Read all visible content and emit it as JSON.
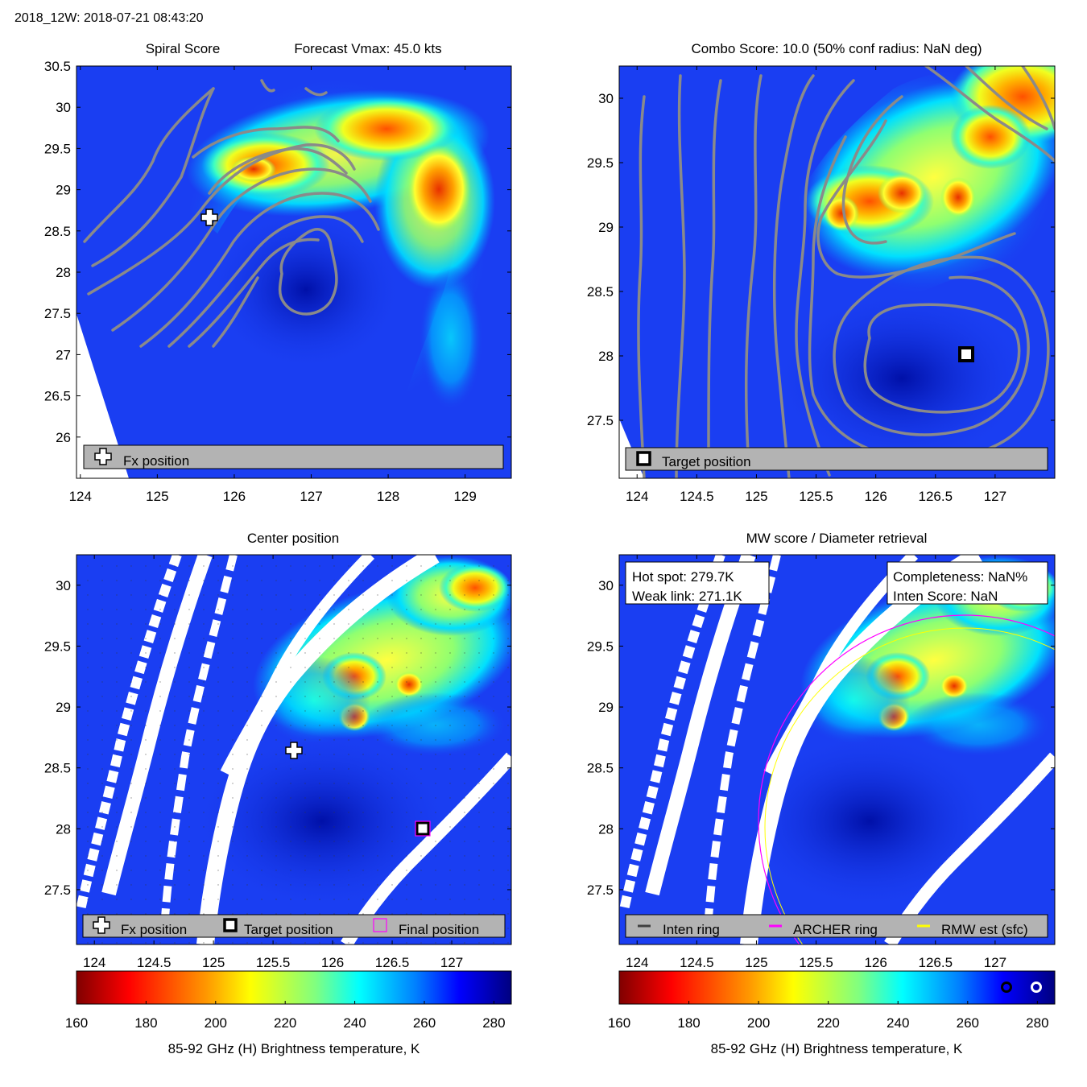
{
  "figure": {
    "header": "2018_12W: 2018-07-21 08:43:20"
  },
  "colors": {
    "background_field": "#1a3ef2",
    "contour": "#8a8a8a",
    "legend_box": "#b3b3b3",
    "inten_ring": "#404040",
    "archer_ring": "#ff00ff",
    "rmw_ring": "#ffff00"
  },
  "panels": {
    "spiral": {
      "title_left": "Spiral Score",
      "title_right": "Forecast Vmax: 45.0 kts",
      "legend": {
        "fx": "Fx position"
      }
    },
    "combo": {
      "title": "Combo Score: 10.0  (50% conf radius: NaN deg)",
      "legend": {
        "target": "Target position"
      }
    },
    "center": {
      "title": "Center position",
      "legend": {
        "fx": "Fx position",
        "target": "Target position",
        "final": "Final position"
      }
    },
    "mw": {
      "title": "MW score / Diameter retrieval",
      "box_left": {
        "line1": "Hot spot: 279.7K",
        "line2": "Weak link: 271.1K"
      },
      "box_right": {
        "line1": "Completeness: NaN%",
        "line2": "Inten Score: NaN"
      },
      "legend": {
        "inten": "Inten ring",
        "archer": "ARCHER ring",
        "rmw": "RMW est (sfc)"
      }
    }
  },
  "chart_data": [
    {
      "type": "heatmap",
      "panel": "spiral",
      "title": "Spiral Score",
      "xlim": [
        123.95,
        129.6
      ],
      "ylim": [
        25.5,
        30.5
      ],
      "xticks": [
        "124",
        "125",
        "126",
        "127",
        "128",
        "129"
      ],
      "xtick_values": [
        124,
        125,
        126,
        127,
        128,
        129
      ],
      "yticks": [
        "26",
        "26.5",
        "27",
        "27.5",
        "28",
        "28.5",
        "29",
        "29.5",
        "30",
        "30.5"
      ],
      "ytick_values": [
        26,
        26.5,
        27,
        27.5,
        28,
        28.5,
        29,
        29.5,
        30,
        30.5
      ],
      "markers": [
        {
          "kind": "fx",
          "lon": 125.7,
          "lat": 28.65
        }
      ]
    },
    {
      "type": "heatmap",
      "panel": "combo",
      "title": "Combo Score: 10.0  (50% conf radius: NaN deg)",
      "xlim": [
        123.85,
        127.5
      ],
      "ylim": [
        27.05,
        30.25
      ],
      "xticks": [
        "124",
        "124.5",
        "125",
        "125.5",
        "126",
        "126.5",
        "127"
      ],
      "xtick_values": [
        124,
        124.5,
        125,
        125.5,
        126,
        126.5,
        127
      ],
      "yticks": [
        "27.5",
        "28",
        "28.5",
        "29",
        "29.5",
        "30"
      ],
      "ytick_values": [
        27.5,
        28,
        28.5,
        29,
        29.5,
        30
      ],
      "markers": [
        {
          "kind": "target",
          "lon": 126.75,
          "lat": 28.02
        }
      ]
    },
    {
      "type": "heatmap",
      "panel": "center",
      "title": "Center position",
      "xlim": [
        123.85,
        127.5
      ],
      "ylim": [
        27.05,
        30.25
      ],
      "xticks": [
        "124",
        "124.5",
        "125",
        "125.5",
        "126",
        "126.5",
        "127"
      ],
      "xtick_values": [
        124,
        124.5,
        125,
        125.5,
        126,
        126.5,
        127
      ],
      "yticks": [
        "27.5",
        "28",
        "28.5",
        "29",
        "29.5",
        "30"
      ],
      "ytick_values": [
        27.5,
        28,
        28.5,
        29,
        29.5,
        30
      ],
      "markers": [
        {
          "kind": "fx",
          "lon": 125.68,
          "lat": 28.65
        },
        {
          "kind": "target",
          "lon": 126.75,
          "lat": 28.02
        },
        {
          "kind": "final",
          "lon": 126.75,
          "lat": 28.02
        }
      ]
    },
    {
      "type": "heatmap",
      "panel": "mw",
      "title": "MW score / Diameter retrieval",
      "xlim": [
        123.85,
        127.5
      ],
      "ylim": [
        27.05,
        30.25
      ],
      "xticks": [
        "124",
        "124.5",
        "125",
        "125.5",
        "126",
        "126.5",
        "127"
      ],
      "xtick_values": [
        124,
        124.5,
        125,
        125.5,
        126,
        126.5,
        127
      ],
      "yticks": [
        "27.5",
        "28",
        "28.5",
        "29",
        "29.5",
        "30"
      ],
      "ytick_values": [
        27.5,
        28,
        28.5,
        29,
        29.5,
        30
      ],
      "rings": [
        {
          "kind": "archer",
          "center_lon": 126.72,
          "center_lat": 28.0,
          "radius_deg": 1.5
        },
        {
          "kind": "rmw",
          "center_lon": 126.72,
          "center_lat": 28.0,
          "radius_deg": 1.46
        }
      ]
    }
  ],
  "colorbars": [
    {
      "label": "85-92 GHz (H) Brightness temperature, K",
      "range": [
        160,
        285
      ],
      "ticks": [
        "160",
        "180",
        "200",
        "220",
        "240",
        "260",
        "280"
      ],
      "tick_values": [
        160,
        180,
        200,
        220,
        240,
        260,
        280
      ],
      "colormap": "jet_reversed"
    },
    {
      "label": "85-92 GHz (H) Brightness temperature, K",
      "range": [
        160,
        285
      ],
      "ticks": [
        "160",
        "180",
        "200",
        "220",
        "240",
        "260",
        "280"
      ],
      "tick_values": [
        160,
        180,
        200,
        220,
        240,
        260,
        280
      ],
      "colormap": "jet_reversed"
    }
  ]
}
